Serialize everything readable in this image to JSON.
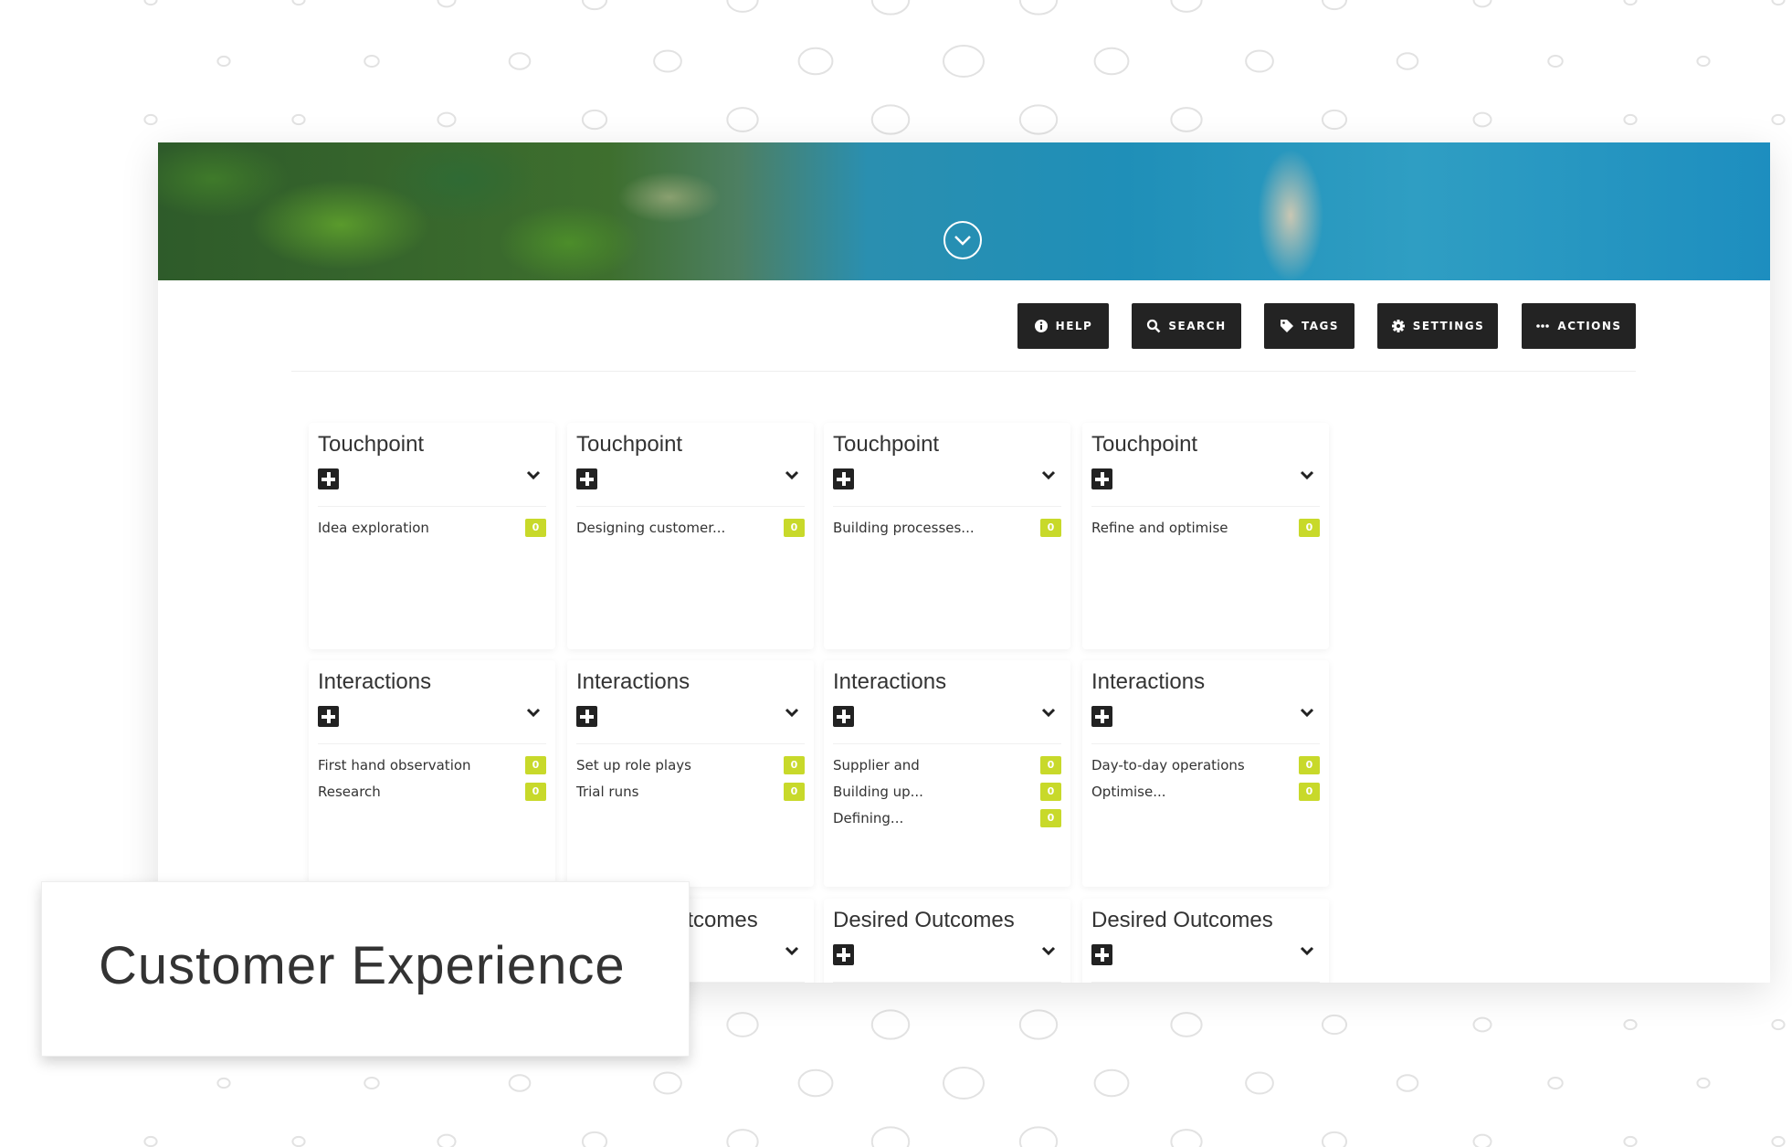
{
  "toolbar": {
    "help": "HELP",
    "search": "SEARCH",
    "tags": "TAGS",
    "settings": "SETTINGS",
    "actions": "ACTIONS"
  },
  "rows": [
    {
      "title": "Touchpoint",
      "cards": [
        {
          "items": [
            {
              "label": "Idea exploration",
              "count": "0"
            }
          ]
        },
        {
          "items": [
            {
              "label": "Designing customer...",
              "count": "0"
            }
          ]
        },
        {
          "items": [
            {
              "label": "Building processes...",
              "count": "0"
            }
          ]
        },
        {
          "items": [
            {
              "label": "Refine and optimise",
              "count": "0"
            }
          ]
        }
      ]
    },
    {
      "title": "Interactions",
      "cards": [
        {
          "items": [
            {
              "label": "First hand observation",
              "count": "0"
            },
            {
              "label": "Research",
              "count": "0"
            }
          ]
        },
        {
          "items": [
            {
              "label": "Set up role plays",
              "count": "0"
            },
            {
              "label": "Trial runs",
              "count": "0"
            }
          ]
        },
        {
          "items": [
            {
              "label": "Supplier and",
              "count": "0"
            },
            {
              "label": "Building up...",
              "count": "0"
            },
            {
              "label": "Defining...",
              "count": "0"
            }
          ]
        },
        {
          "items": [
            {
              "label": "Day-to-day operations",
              "count": "0"
            },
            {
              "label": "Optimise...",
              "count": "0"
            }
          ]
        }
      ]
    },
    {
      "title": "Desired Outcomes",
      "cards": [
        {
          "items": []
        },
        {
          "items": []
        },
        {
          "items": []
        },
        {
          "items": []
        }
      ]
    }
  ],
  "overlay_title": "Customer Experience",
  "colors": {
    "badge": "#c8d92a",
    "button": "#232323"
  }
}
